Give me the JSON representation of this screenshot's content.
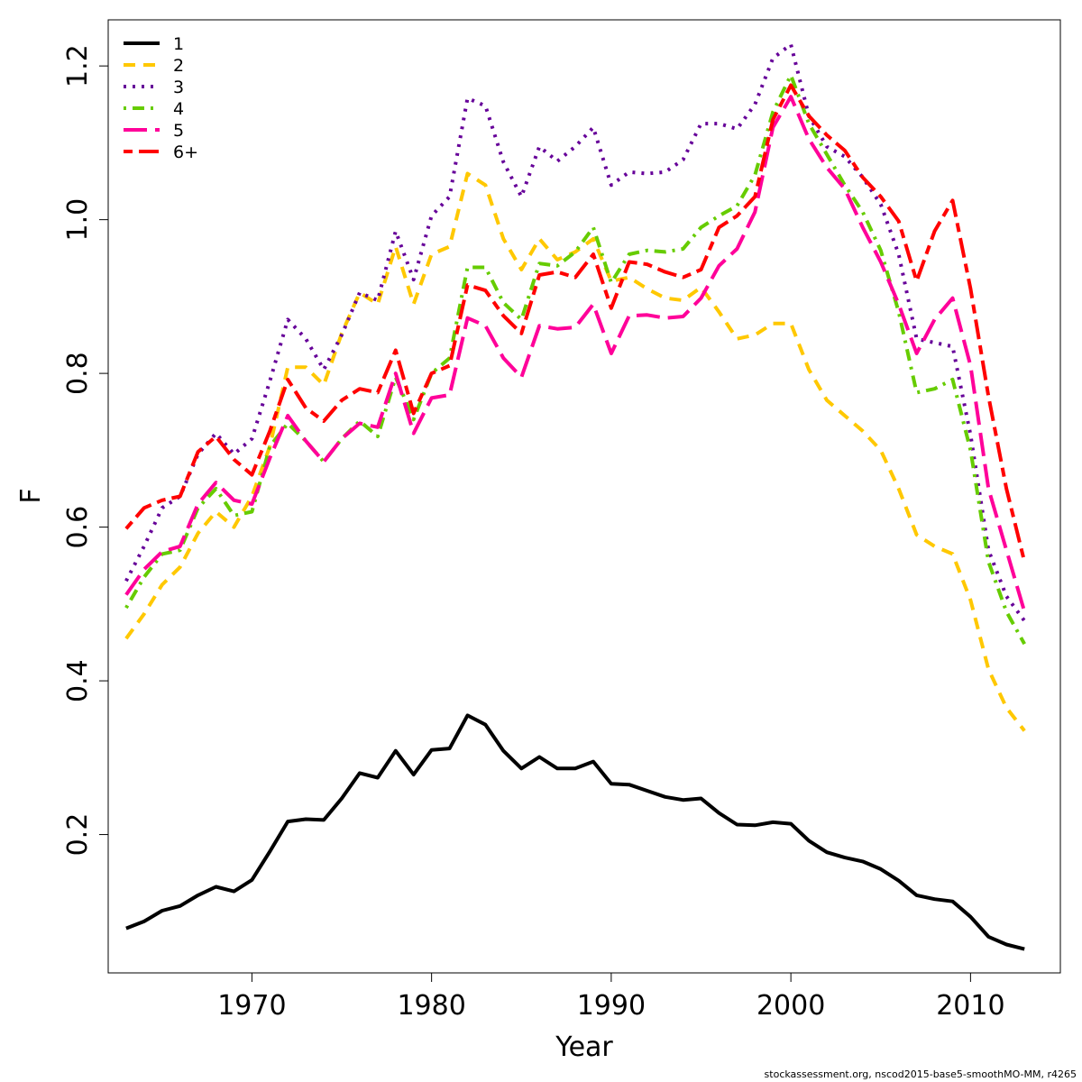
{
  "credit": "stockassessment.org, nscod2015-base5-smoothMO-MM, r4265",
  "chart_data": {
    "type": "line",
    "xlabel": "Year",
    "ylabel": "F",
    "xlim": [
      1962,
      2015
    ],
    "ylim": [
      0.02,
      1.26
    ],
    "x_ticks": [
      1970,
      1980,
      1990,
      2000,
      2010
    ],
    "y_ticks": [
      0.2,
      0.4,
      0.6,
      0.8,
      1.0,
      1.2
    ],
    "x_tick_labels": [
      "1970",
      "1980",
      "1990",
      "2000",
      "2010"
    ],
    "y_tick_labels": [
      "0.2",
      "0.4",
      "0.6",
      "0.8",
      "1.0",
      "1.2"
    ],
    "legend_position": "top-left",
    "x": [
      1963,
      1964,
      1965,
      1966,
      1967,
      1968,
      1969,
      1970,
      1971,
      1972,
      1973,
      1974,
      1975,
      1976,
      1977,
      1978,
      1979,
      1980,
      1981,
      1982,
      1983,
      1984,
      1985,
      1986,
      1987,
      1988,
      1989,
      1990,
      1991,
      1992,
      1993,
      1994,
      1995,
      1996,
      1997,
      1998,
      1999,
      2000,
      2001,
      2002,
      2003,
      2004,
      2005,
      2006,
      2007,
      2008,
      2009,
      2010,
      2011,
      2012,
      2013
    ],
    "series": [
      {
        "name": "1",
        "color": "#000000",
        "dash": "solid",
        "values": [
          0.078,
          0.087,
          0.101,
          0.107,
          0.121,
          0.132,
          0.126,
          0.141,
          0.178,
          0.217,
          0.22,
          0.219,
          0.247,
          0.28,
          0.274,
          0.309,
          0.278,
          0.31,
          0.312,
          0.355,
          0.343,
          0.309,
          0.286,
          0.301,
          0.286,
          0.286,
          0.295,
          0.266,
          0.265,
          0.257,
          0.249,
          0.245,
          0.247,
          0.228,
          0.213,
          0.212,
          0.216,
          0.214,
          0.192,
          0.177,
          0.17,
          0.165,
          0.155,
          0.14,
          0.121,
          0.116,
          0.113,
          0.093,
          0.067,
          0.057,
          0.051
        ]
      },
      {
        "name": "2",
        "color": "#FFC800",
        "dash": "dash",
        "values": [
          0.455,
          0.487,
          0.525,
          0.548,
          0.592,
          0.62,
          0.6,
          0.64,
          0.705,
          0.808,
          0.808,
          0.785,
          0.852,
          0.905,
          0.89,
          0.965,
          0.89,
          0.955,
          0.965,
          1.06,
          1.045,
          0.975,
          0.935,
          0.975,
          0.948,
          0.958,
          0.975,
          0.92,
          0.925,
          0.91,
          0.898,
          0.895,
          0.912,
          0.88,
          0.845,
          0.85,
          0.865,
          0.865,
          0.805,
          0.765,
          0.745,
          0.725,
          0.7,
          0.65,
          0.59,
          0.575,
          0.565,
          0.505,
          0.415,
          0.365,
          0.335
        ]
      },
      {
        "name": "3",
        "color": "#660099",
        "dash": "dot",
        "values": [
          0.53,
          0.575,
          0.625,
          0.64,
          0.695,
          0.722,
          0.695,
          0.715,
          0.79,
          0.87,
          0.845,
          0.805,
          0.85,
          0.905,
          0.895,
          0.985,
          0.922,
          1.005,
          1.03,
          1.158,
          1.148,
          1.075,
          1.03,
          1.095,
          1.076,
          1.095,
          1.12,
          1.045,
          1.062,
          1.06,
          1.062,
          1.078,
          1.125,
          1.125,
          1.118,
          1.15,
          1.21,
          1.228,
          1.135,
          1.095,
          1.082,
          1.055,
          1.02,
          0.955,
          0.845,
          0.84,
          0.835,
          0.72,
          0.57,
          0.51,
          0.478
        ]
      },
      {
        "name": "4",
        "color": "#66CC00",
        "dash": "dotdash",
        "values": [
          0.495,
          0.535,
          0.565,
          0.57,
          0.625,
          0.65,
          0.615,
          0.62,
          0.705,
          0.735,
          0.712,
          0.685,
          0.715,
          0.738,
          0.718,
          0.795,
          0.74,
          0.8,
          0.82,
          0.938,
          0.938,
          0.892,
          0.87,
          0.943,
          0.94,
          0.958,
          0.99,
          0.918,
          0.955,
          0.96,
          0.958,
          0.962,
          0.99,
          1.005,
          1.018,
          1.058,
          1.14,
          1.188,
          1.125,
          1.085,
          1.045,
          1.01,
          0.96,
          0.88,
          0.775,
          0.78,
          0.792,
          0.7,
          0.555,
          0.49,
          0.448
        ]
      },
      {
        "name": "5",
        "color": "#FF0099",
        "dash": "longdash",
        "values": [
          0.512,
          0.545,
          0.568,
          0.575,
          0.63,
          0.658,
          0.635,
          0.63,
          0.69,
          0.745,
          0.712,
          0.685,
          0.715,
          0.735,
          0.73,
          0.8,
          0.722,
          0.768,
          0.772,
          0.872,
          0.862,
          0.82,
          0.795,
          0.862,
          0.858,
          0.86,
          0.89,
          0.826,
          0.875,
          0.876,
          0.872,
          0.874,
          0.898,
          0.94,
          0.962,
          1.01,
          1.12,
          1.16,
          1.105,
          1.068,
          1.04,
          0.99,
          0.945,
          0.89,
          0.826,
          0.87,
          0.898,
          0.81,
          0.65,
          0.57,
          0.49
        ]
      },
      {
        "name": "6+",
        "color": "#FF0000",
        "dash": "twodash",
        "values": [
          0.598,
          0.625,
          0.635,
          0.64,
          0.698,
          0.718,
          0.688,
          0.668,
          0.725,
          0.792,
          0.755,
          0.738,
          0.765,
          0.78,
          0.775,
          0.83,
          0.748,
          0.8,
          0.81,
          0.915,
          0.908,
          0.875,
          0.852,
          0.928,
          0.932,
          0.925,
          0.955,
          0.885,
          0.945,
          0.942,
          0.932,
          0.925,
          0.935,
          0.99,
          1.005,
          1.03,
          1.13,
          1.175,
          1.135,
          1.11,
          1.09,
          1.055,
          1.03,
          0.998,
          0.92,
          0.985,
          1.025,
          0.91,
          0.77,
          0.65,
          0.555
        ]
      }
    ]
  }
}
